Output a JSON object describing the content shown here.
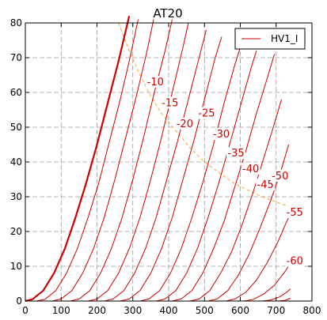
{
  "chart_data": {
    "type": "line",
    "title": "AT20",
    "xlabel": "",
    "ylabel": "",
    "xlim": [
      0,
      800
    ],
    "ylim": [
      0,
      80
    ],
    "xticks": [
      0,
      100,
      200,
      300,
      400,
      500,
      600,
      700,
      800
    ],
    "yticks": [
      0,
      10,
      20,
      30,
      40,
      50,
      60,
      70,
      80
    ],
    "grid": true,
    "legend": {
      "position": "top-right",
      "entries": [
        {
          "label": "HV1_I",
          "color": "#cc0000"
        }
      ]
    },
    "colors": {
      "curves": "#cc0000",
      "max_dissipation": "#f0a830"
    },
    "series": [
      {
        "grid_v": "0",
        "bold": true,
        "points": [
          [
            0,
            0
          ],
          [
            20,
            0.5
          ],
          [
            50,
            3
          ],
          [
            80,
            8
          ],
          [
            110,
            15
          ],
          [
            140,
            24
          ],
          [
            170,
            34
          ],
          [
            200,
            45
          ],
          [
            230,
            57
          ],
          [
            260,
            69
          ],
          [
            290,
            82
          ]
        ]
      },
      {
        "grid_v": "-5",
        "bold": false,
        "points": [
          [
            30,
            0
          ],
          [
            55,
            0.5
          ],
          [
            85,
            3
          ],
          [
            115,
            8
          ],
          [
            145,
            15
          ],
          [
            175,
            24
          ],
          [
            205,
            34
          ],
          [
            235,
            46
          ],
          [
            265,
            58
          ],
          [
            290,
            69
          ],
          [
            315,
            81
          ]
        ]
      },
      {
        "grid_v": "-10",
        "bold": false,
        "points": [
          [
            75,
            0
          ],
          [
            100,
            0.6
          ],
          [
            130,
            3
          ],
          [
            160,
            8
          ],
          [
            190,
            15
          ],
          [
            220,
            24
          ],
          [
            250,
            35
          ],
          [
            280,
            47
          ],
          [
            310,
            59
          ],
          [
            340,
            72
          ],
          [
            358,
            81
          ]
        ]
      },
      {
        "grid_v": "-15",
        "bold": false,
        "points": [
          [
            125,
            0
          ],
          [
            150,
            0.6
          ],
          [
            180,
            3
          ],
          [
            210,
            8
          ],
          [
            240,
            15
          ],
          [
            270,
            24
          ],
          [
            300,
            35
          ],
          [
            330,
            47
          ],
          [
            360,
            60
          ],
          [
            390,
            72
          ],
          [
            410,
            81
          ]
        ]
      },
      {
        "grid_v": "-20",
        "bold": false,
        "points": [
          [
            175,
            0
          ],
          [
            200,
            0.6
          ],
          [
            230,
            3
          ],
          [
            260,
            8
          ],
          [
            290,
            15
          ],
          [
            320,
            24
          ],
          [
            350,
            35
          ],
          [
            380,
            47
          ],
          [
            410,
            60
          ],
          [
            440,
            73
          ],
          [
            455,
            80
          ]
        ]
      },
      {
        "grid_v": "-25",
        "bold": false,
        "points": [
          [
            220,
            0
          ],
          [
            245,
            0.6
          ],
          [
            275,
            3
          ],
          [
            305,
            8
          ],
          [
            335,
            15
          ],
          [
            365,
            24
          ],
          [
            395,
            35
          ],
          [
            425,
            46
          ],
          [
            455,
            58
          ],
          [
            485,
            70
          ],
          [
            505,
            78
          ]
        ]
      },
      {
        "grid_v": "-30",
        "bold": false,
        "points": [
          [
            265,
            0
          ],
          [
            290,
            0.6
          ],
          [
            320,
            3
          ],
          [
            350,
            8
          ],
          [
            380,
            15
          ],
          [
            410,
            24
          ],
          [
            440,
            35
          ],
          [
            470,
            46
          ],
          [
            500,
            58
          ],
          [
            530,
            70
          ],
          [
            548,
            76
          ]
        ]
      },
      {
        "grid_v": "-35",
        "bold": false,
        "points": [
          [
            320,
            0
          ],
          [
            345,
            0.6
          ],
          [
            375,
            3
          ],
          [
            405,
            8
          ],
          [
            435,
            15
          ],
          [
            465,
            24
          ],
          [
            495,
            34
          ],
          [
            525,
            45
          ],
          [
            555,
            57
          ],
          [
            585,
            68
          ],
          [
            600,
            73
          ]
        ]
      },
      {
        "grid_v": "-40",
        "bold": false,
        "points": [
          [
            365,
            0
          ],
          [
            390,
            0.6
          ],
          [
            420,
            3
          ],
          [
            450,
            8
          ],
          [
            480,
            15
          ],
          [
            510,
            24
          ],
          [
            540,
            34
          ],
          [
            570,
            45
          ],
          [
            600,
            56
          ],
          [
            630,
            67
          ],
          [
            645,
            72
          ]
        ]
      },
      {
        "grid_v": "-45",
        "bold": false,
        "points": [
          [
            410,
            0
          ],
          [
            435,
            0.6
          ],
          [
            465,
            3
          ],
          [
            495,
            8
          ],
          [
            525,
            15
          ],
          [
            555,
            23
          ],
          [
            585,
            33
          ],
          [
            615,
            43
          ],
          [
            645,
            54
          ],
          [
            675,
            64
          ],
          [
            695,
            71
          ]
        ]
      },
      {
        "grid_v": "-50",
        "bold": false,
        "points": [
          [
            460,
            0
          ],
          [
            485,
            0.6
          ],
          [
            515,
            3
          ],
          [
            545,
            8
          ],
          [
            575,
            14
          ],
          [
            605,
            22
          ],
          [
            635,
            31
          ],
          [
            665,
            41
          ],
          [
            695,
            51
          ],
          [
            715,
            58
          ]
        ]
      },
      {
        "grid_v": "-55",
        "bold": false,
        "points": [
          [
            510,
            0
          ],
          [
            535,
            0.6
          ],
          [
            565,
            3
          ],
          [
            595,
            7.5
          ],
          [
            625,
            13.5
          ],
          [
            655,
            21
          ],
          [
            685,
            29
          ],
          [
            715,
            38
          ],
          [
            735,
            45
          ]
        ]
      },
      {
        "grid_v": "-60",
        "bold": false,
        "points": [
          [
            560,
            0
          ],
          [
            585,
            0.6
          ],
          [
            615,
            2.5
          ],
          [
            645,
            6
          ],
          [
            675,
            11
          ],
          [
            705,
            17
          ],
          [
            730,
            23
          ],
          [
            740,
            25
          ]
        ]
      },
      {
        "grid_v": "-65",
        "bold": false,
        "points": [
          [
            610,
            0
          ],
          [
            635,
            0.4
          ],
          [
            665,
            2
          ],
          [
            695,
            4.5
          ],
          [
            725,
            8.5
          ],
          [
            740,
            11
          ]
        ]
      },
      {
        "grid_v": "-70",
        "bold": false,
        "points": [
          [
            660,
            0
          ],
          [
            685,
            0.3
          ],
          [
            710,
            1.2
          ],
          [
            730,
            2.6
          ],
          [
            740,
            3.5
          ]
        ]
      },
      {
        "grid_v": "-75",
        "bold": false,
        "points": [
          [
            705,
            0
          ],
          [
            725,
            0.2
          ],
          [
            740,
            0.8
          ]
        ]
      }
    ],
    "max_dissipation": {
      "points": [
        [
          260,
          80
        ],
        [
          290,
          72
        ],
        [
          320,
          65
        ],
        [
          350,
          59
        ],
        [
          380,
          54
        ],
        [
          420,
          49
        ],
        [
          460,
          44
        ],
        [
          500,
          40
        ],
        [
          540,
          37
        ],
        [
          580,
          34
        ],
        [
          620,
          32
        ],
        [
          660,
          30
        ],
        [
          700,
          28.5
        ],
        [
          740,
          27
        ]
      ]
    },
    "labels": [
      {
        "text": "-10",
        "x": 363,
        "y": 62.5
      },
      {
        "text": "-15",
        "x": 404,
        "y": 56.5
      },
      {
        "text": "-20",
        "x": 445,
        "y": 50.5
      },
      {
        "text": "-25",
        "x": 506,
        "y": 53.5
      },
      {
        "text": "-30",
        "x": 547,
        "y": 47.5
      },
      {
        "text": "-35",
        "x": 588,
        "y": 42
      },
      {
        "text": "-40",
        "x": 629,
        "y": 37.5
      },
      {
        "text": "-45",
        "x": 670,
        "y": 33
      },
      {
        "text": "-50",
        "x": 711,
        "y": 35.5
      },
      {
        "text": "-55",
        "x": 752,
        "y": 25
      },
      {
        "text": "-60",
        "x": 752,
        "y": 11
      }
    ]
  }
}
